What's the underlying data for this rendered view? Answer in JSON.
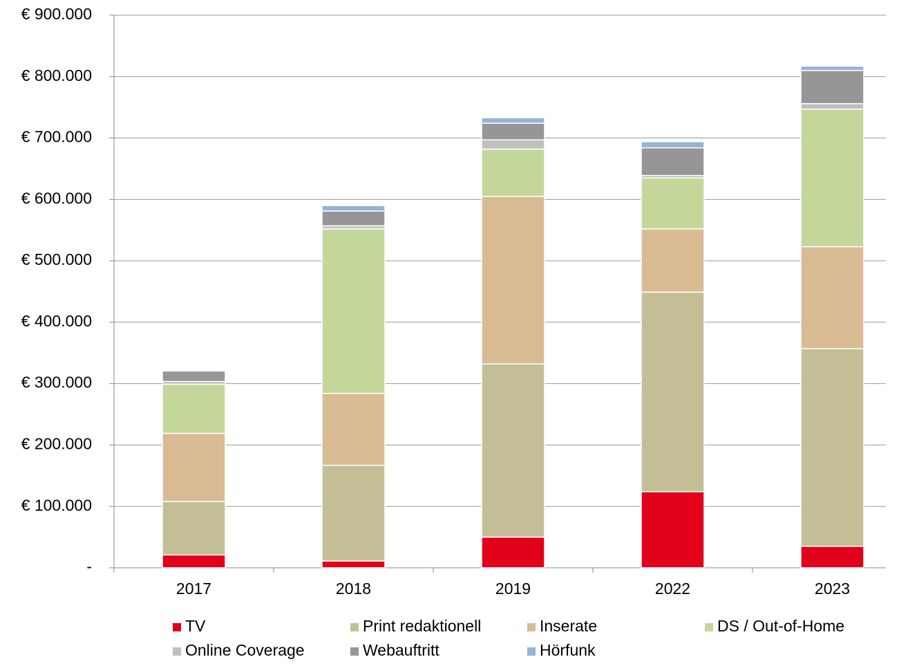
{
  "chart_data": {
    "type": "stacked_bar",
    "categories": [
      "2017",
      "2018",
      "2019",
      "2022",
      "2023"
    ],
    "series": [
      {
        "name": "TV",
        "color": "#e2001a",
        "values": [
          21000,
          11000,
          50000,
          124000,
          35000
        ]
      },
      {
        "name": "Print redaktionell",
        "color": "#c4be96",
        "values": [
          87000,
          156000,
          282000,
          325000,
          322000
        ]
      },
      {
        "name": "Inserate",
        "color": "#d9bb93",
        "values": [
          111000,
          117000,
          273000,
          103000,
          166000
        ]
      },
      {
        "name": "DS / Out-of-Home",
        "color": "#c4d79b",
        "values": [
          80000,
          268000,
          77000,
          83000,
          224000
        ]
      },
      {
        "name": "Online Coverage",
        "color": "#bfbfbf",
        "values": [
          4500,
          5000,
          15000,
          4000,
          9000
        ]
      },
      {
        "name": "Webauftritt",
        "color": "#969696",
        "values": [
          17000,
          24000,
          27000,
          45000,
          54000
        ]
      },
      {
        "name": "Hörfunk",
        "color": "#95b3d7",
        "values": [
          0,
          9000,
          9000,
          10000,
          7000
        ]
      }
    ],
    "ylim": [
      0,
      900000
    ],
    "yticks": [
      {
        "value": 0,
        "label": "-"
      },
      {
        "value": 100000,
        "label": "€ 100.000"
      },
      {
        "value": 200000,
        "label": "€ 200.000"
      },
      {
        "value": 300000,
        "label": "€ 300.000"
      },
      {
        "value": 400000,
        "label": "€ 400.000"
      },
      {
        "value": 500000,
        "label": "€ 500.000"
      },
      {
        "value": 600000,
        "label": "€ 600.000"
      },
      {
        "value": 700000,
        "label": "€ 700.000"
      },
      {
        "value": 800000,
        "label": "€ 800.000"
      },
      {
        "value": 900000,
        "label": "€ 900.000"
      }
    ],
    "grid": true,
    "legend": "bottom"
  }
}
